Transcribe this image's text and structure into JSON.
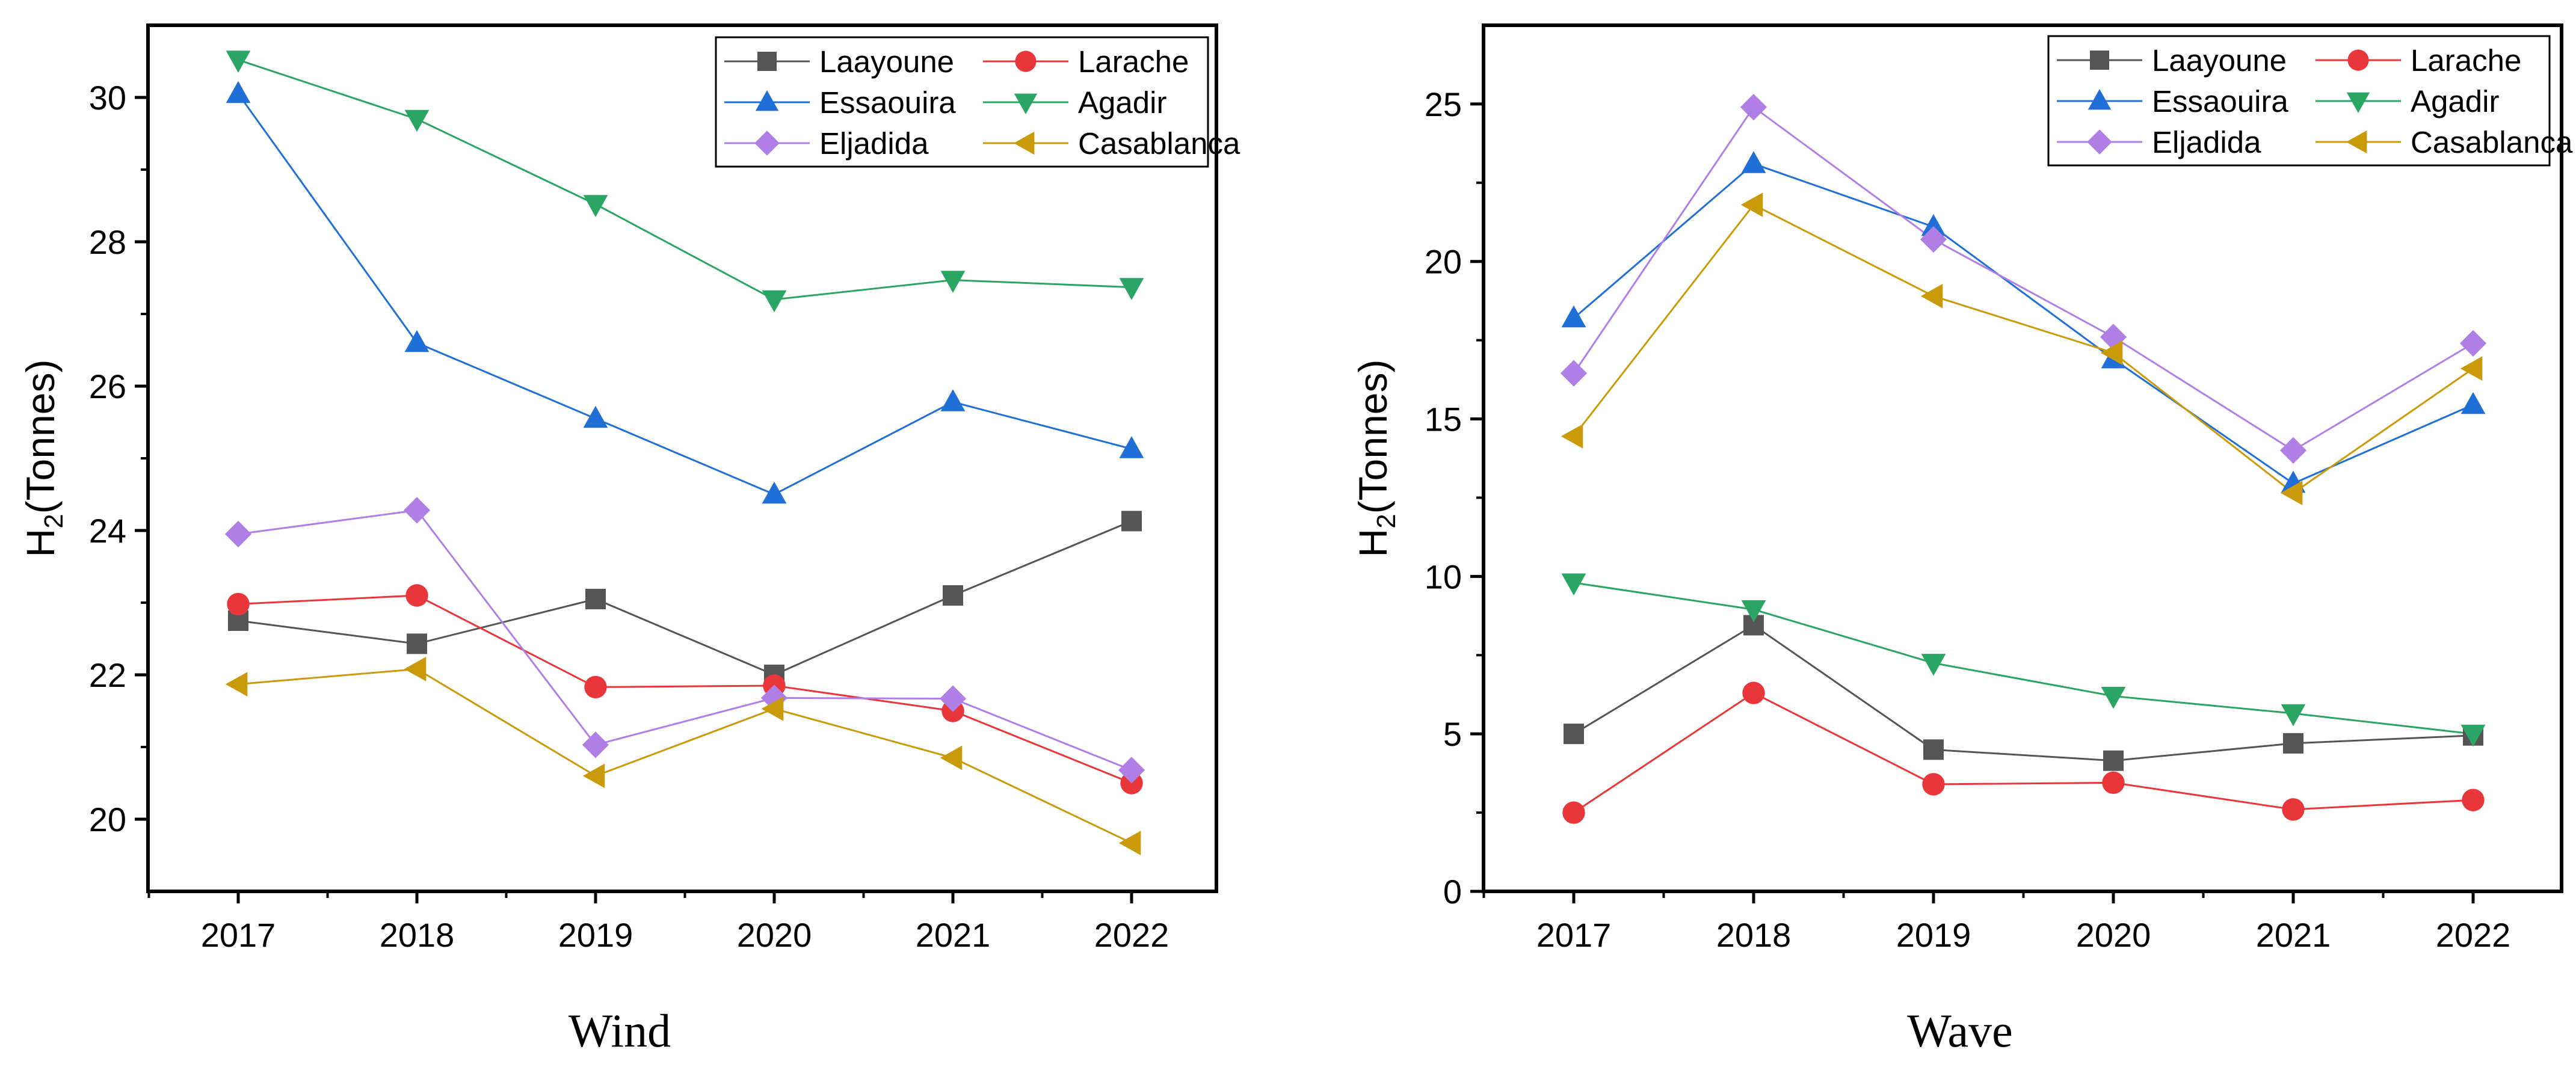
{
  "chart_data": [
    {
      "type": "line",
      "title": "Wind",
      "xlabel": "",
      "ylabel": "H2(Tonnes)",
      "ylabel_main": "H",
      "ylabel_sub": "2",
      "ylabel_rest": "(Tonnes)",
      "x": [
        "2017",
        "2018",
        "2019",
        "2020",
        "2021",
        "2022"
      ],
      "ylim": [
        19,
        31
      ],
      "yticks": [
        20,
        22,
        24,
        26,
        28,
        30
      ],
      "grid": false,
      "legend": "top-right",
      "series": [
        {
          "name": "Laayoune",
          "color": "#555555",
          "marker": "square",
          "values": [
            22.75,
            22.43,
            23.05,
            22.0,
            23.1,
            24.13
          ]
        },
        {
          "name": "Larache",
          "color": "#e8363a",
          "marker": "circle",
          "values": [
            22.98,
            23.1,
            21.83,
            21.85,
            21.5,
            20.5
          ]
        },
        {
          "name": "Essaouira",
          "color": "#1f6fd6",
          "marker": "triangle-up",
          "values": [
            30.05,
            26.6,
            25.55,
            24.5,
            25.78,
            25.13
          ]
        },
        {
          "name": "Agadir",
          "color": "#2aa564",
          "marker": "triangle-down",
          "values": [
            30.52,
            29.7,
            28.52,
            27.2,
            27.47,
            27.37
          ]
        },
        {
          "name": "Eljadida",
          "color": "#b07fe6",
          "marker": "diamond",
          "values": [
            23.95,
            24.28,
            21.03,
            21.68,
            21.67,
            20.68
          ]
        },
        {
          "name": "Casablanca",
          "color": "#c99a09",
          "marker": "triangle-left",
          "values": [
            21.87,
            22.08,
            20.6,
            21.53,
            20.85,
            19.67
          ]
        }
      ]
    },
    {
      "type": "line",
      "title": "Wave",
      "xlabel": "",
      "ylabel": "H2(Tonnes)",
      "ylabel_main": "H",
      "ylabel_sub": "2",
      "ylabel_rest": "(Tonnes)",
      "x": [
        "2017",
        "2018",
        "2019",
        "2020",
        "2021",
        "2022"
      ],
      "ylim": [
        0,
        27.5
      ],
      "yticks": [
        0,
        5,
        10,
        15,
        20,
        25
      ],
      "grid": false,
      "legend": "top-right",
      "series": [
        {
          "name": "Laayoune",
          "color": "#555555",
          "marker": "square",
          "values": [
            5.0,
            8.45,
            4.5,
            4.15,
            4.7,
            4.95
          ]
        },
        {
          "name": "Larache",
          "color": "#e8363a",
          "marker": "circle",
          "values": [
            2.5,
            6.3,
            3.4,
            3.45,
            2.6,
            2.9
          ]
        },
        {
          "name": "Essaouira",
          "color": "#1f6fd6",
          "marker": "triangle-up",
          "values": [
            18.2,
            23.1,
            21.1,
            16.9,
            12.95,
            15.45
          ]
        },
        {
          "name": "Agadir",
          "color": "#2aa564",
          "marker": "triangle-down",
          "values": [
            9.8,
            8.95,
            7.25,
            6.2,
            5.65,
            5.0
          ]
        },
        {
          "name": "Eljadida",
          "color": "#b07fe6",
          "marker": "diamond",
          "values": [
            16.45,
            24.9,
            20.7,
            17.6,
            14.0,
            17.4
          ]
        },
        {
          "name": "Casablanca",
          "color": "#c99a09",
          "marker": "triangle-left",
          "values": [
            14.45,
            21.8,
            18.9,
            17.1,
            12.65,
            16.6
          ]
        }
      ]
    }
  ]
}
